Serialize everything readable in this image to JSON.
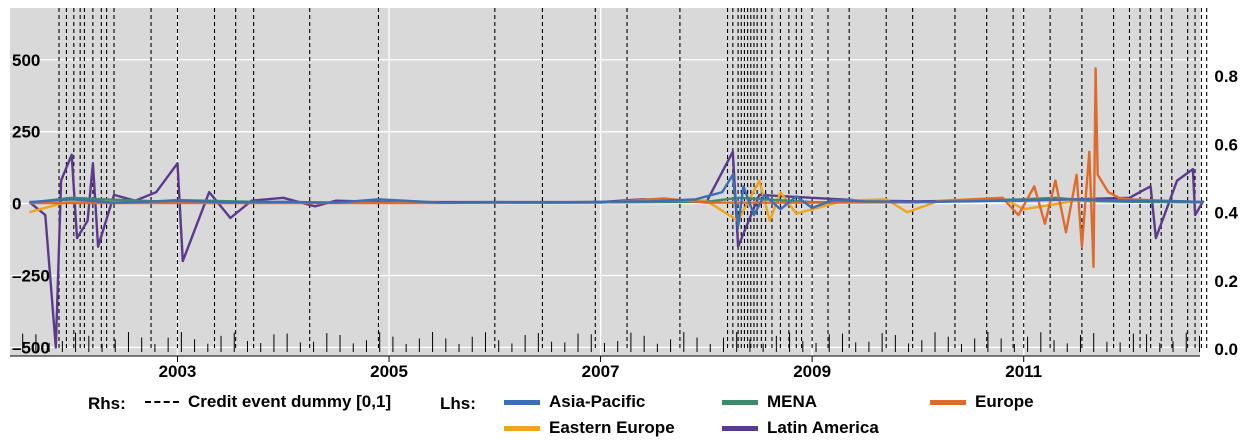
{
  "chart_data": {
    "type": "line",
    "title": "",
    "xlabel": "",
    "ylabel": "",
    "x_range": [
      "2001-06",
      "2012-09"
    ],
    "x_ticks": [
      "2003",
      "2005",
      "2007",
      "2009",
      "2011"
    ],
    "left_axis": {
      "ylim": [
        -530,
        680
      ],
      "ticks": [
        "500",
        "250",
        "0",
        "–250",
        "–500"
      ],
      "tick_values": [
        500,
        250,
        0,
        -250,
        -500
      ]
    },
    "right_axis": {
      "ylim": [
        -0.02,
        1.0
      ],
      "ticks": [
        "0.8",
        "0.6",
        "0.4",
        "0.2",
        "0.0"
      ],
      "tick_values": [
        0.8,
        0.6,
        0.4,
        0.2,
        0.0
      ]
    },
    "grid": true,
    "legend_placement": "bottom",
    "legend": {
      "rhs_label": "Rhs:",
      "lhs_label": "Lhs:",
      "rhs_series": "Credit event dummy [0,1]",
      "lhs_series": [
        "Asia-Pacific",
        "MENA",
        "Europe",
        "Eastern Europe",
        "Latin America"
      ]
    },
    "credit_event_dates": [
      2001.88,
      2001.95,
      2002.02,
      2002.08,
      2002.12,
      2002.2,
      2002.28,
      2002.33,
      2002.4,
      2002.75,
      2003.0,
      2003.35,
      2003.55,
      2003.72,
      2004.25,
      2004.9,
      2006.0,
      2006.45,
      2006.95,
      2007.25,
      2007.75,
      2008.2,
      2008.25,
      2008.3,
      2008.33,
      2008.36,
      2008.39,
      2008.42,
      2008.45,
      2008.48,
      2008.52,
      2008.56,
      2008.62,
      2008.7,
      2008.78,
      2008.85,
      2008.9,
      2009.0,
      2009.15,
      2009.35,
      2009.7,
      2009.95,
      2010.35,
      2010.65,
      2010.9,
      2011.0,
      2011.25,
      2011.55,
      2011.85,
      2012.0,
      2012.1,
      2012.2,
      2012.3,
      2012.4,
      2012.55,
      2012.62,
      2012.68,
      2012.73
    ],
    "series": [
      {
        "name": "Asia-Pacific",
        "color": "#3a6fb5",
        "values": [
          [
            2001.6,
            5
          ],
          [
            2002.0,
            15
          ],
          [
            2002.4,
            3
          ],
          [
            2003.0,
            10
          ],
          [
            2003.5,
            4
          ],
          [
            2004.0,
            6
          ],
          [
            2004.5,
            3
          ],
          [
            2004.9,
            15
          ],
          [
            2005.5,
            3
          ],
          [
            2006.0,
            5
          ],
          [
            2006.5,
            4
          ],
          [
            2007.0,
            6
          ],
          [
            2007.5,
            8
          ],
          [
            2007.9,
            15
          ],
          [
            2008.15,
            40
          ],
          [
            2008.25,
            100
          ],
          [
            2008.3,
            -80
          ],
          [
            2008.35,
            60
          ],
          [
            2008.45,
            -40
          ],
          [
            2008.55,
            30
          ],
          [
            2008.7,
            -20
          ],
          [
            2008.85,
            25
          ],
          [
            2009.0,
            -15
          ],
          [
            2009.2,
            12
          ],
          [
            2009.5,
            8
          ],
          [
            2010.0,
            6
          ],
          [
            2010.5,
            8
          ],
          [
            2011.0,
            12
          ],
          [
            2011.5,
            15
          ],
          [
            2012.0,
            10
          ],
          [
            2012.5,
            8
          ],
          [
            2012.7,
            5
          ]
        ]
      },
      {
        "name": "MENA",
        "color": "#3d8a6e",
        "values": [
          [
            2001.6,
            3
          ],
          [
            2002.0,
            20
          ],
          [
            2002.3,
            15
          ],
          [
            2002.8,
            8
          ],
          [
            2003.0,
            12
          ],
          [
            2004.0,
            4
          ],
          [
            2005.0,
            3
          ],
          [
            2006.0,
            3
          ],
          [
            2007.0,
            4
          ],
          [
            2008.0,
            6
          ],
          [
            2008.3,
            20
          ],
          [
            2009.0,
            5
          ],
          [
            2010.0,
            4
          ],
          [
            2011.0,
            15
          ],
          [
            2011.3,
            20
          ],
          [
            2011.6,
            10
          ],
          [
            2012.0,
            6
          ],
          [
            2012.7,
            4
          ]
        ]
      },
      {
        "name": "Europe",
        "color": "#e06a2c",
        "values": [
          [
            2001.6,
            2
          ],
          [
            2003.0,
            2
          ],
          [
            2005.0,
            2
          ],
          [
            2007.0,
            3
          ],
          [
            2007.6,
            18
          ],
          [
            2008.0,
            3
          ],
          [
            2009.0,
            3
          ],
          [
            2010.0,
            4
          ],
          [
            2010.8,
            20
          ],
          [
            2010.95,
            -40
          ],
          [
            2011.1,
            60
          ],
          [
            2011.2,
            -70
          ],
          [
            2011.3,
            80
          ],
          [
            2011.4,
            -100
          ],
          [
            2011.5,
            100
          ],
          [
            2011.55,
            -150
          ],
          [
            2011.62,
            180
          ],
          [
            2011.66,
            -220
          ],
          [
            2011.68,
            470
          ],
          [
            2011.7,
            100
          ],
          [
            2011.8,
            40
          ],
          [
            2011.9,
            20
          ],
          [
            2012.0,
            15
          ],
          [
            2012.5,
            8
          ],
          [
            2012.7,
            5
          ]
        ]
      },
      {
        "name": "Eastern Europe",
        "color": "#f0a41c",
        "values": [
          [
            2001.6,
            -30
          ],
          [
            2002.0,
            10
          ],
          [
            2003.0,
            5
          ],
          [
            2004.0,
            3
          ],
          [
            2005.0,
            3
          ],
          [
            2006.0,
            3
          ],
          [
            2007.0,
            4
          ],
          [
            2008.0,
            10
          ],
          [
            2008.3,
            -60
          ],
          [
            2008.5,
            80
          ],
          [
            2008.6,
            -60
          ],
          [
            2008.7,
            40
          ],
          [
            2008.85,
            -35
          ],
          [
            2009.0,
            -20
          ],
          [
            2009.3,
            10
          ],
          [
            2009.7,
            15
          ],
          [
            2009.9,
            -30
          ],
          [
            2010.2,
            10
          ],
          [
            2010.8,
            20
          ],
          [
            2011.0,
            -20
          ],
          [
            2011.5,
            10
          ],
          [
            2012.0,
            8
          ],
          [
            2012.7,
            5
          ]
        ]
      },
      {
        "name": "Latin America",
        "color": "#5b3a8e",
        "values": [
          [
            2001.6,
            5
          ],
          [
            2001.75,
            -40
          ],
          [
            2001.85,
            -500
          ],
          [
            2001.9,
            80
          ],
          [
            2002.0,
            170
          ],
          [
            2002.05,
            -120
          ],
          [
            2002.15,
            -60
          ],
          [
            2002.2,
            140
          ],
          [
            2002.25,
            -150
          ],
          [
            2002.4,
            30
          ],
          [
            2002.6,
            10
          ],
          [
            2002.8,
            40
          ],
          [
            2003.0,
            140
          ],
          [
            2003.05,
            -200
          ],
          [
            2003.3,
            40
          ],
          [
            2003.5,
            -50
          ],
          [
            2003.7,
            10
          ],
          [
            2004.0,
            20
          ],
          [
            2004.3,
            -10
          ],
          [
            2004.5,
            10
          ],
          [
            2005.0,
            5
          ],
          [
            2006.0,
            5
          ],
          [
            2007.0,
            5
          ],
          [
            2007.4,
            15
          ],
          [
            2008.0,
            5
          ],
          [
            2008.25,
            180
          ],
          [
            2008.3,
            -150
          ],
          [
            2008.5,
            30
          ],
          [
            2009.0,
            20
          ],
          [
            2009.5,
            10
          ],
          [
            2010.0,
            8
          ],
          [
            2010.5,
            10
          ],
          [
            2011.0,
            10
          ],
          [
            2012.0,
            20
          ],
          [
            2012.2,
            60
          ],
          [
            2012.25,
            -120
          ],
          [
            2012.45,
            80
          ],
          [
            2012.6,
            120
          ],
          [
            2012.62,
            -40
          ],
          [
            2012.7,
            10
          ]
        ]
      }
    ]
  }
}
